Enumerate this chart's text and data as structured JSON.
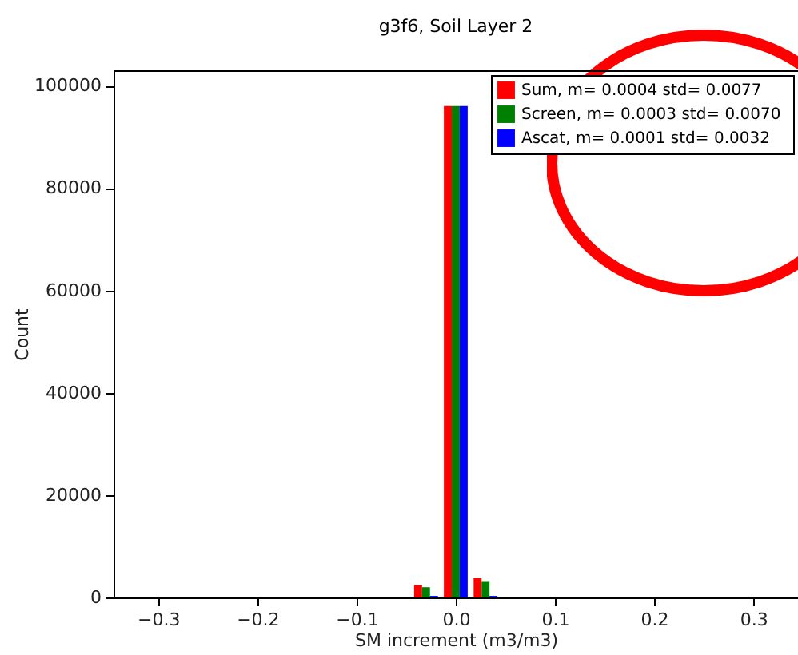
{
  "chart_data": {
    "type": "histogram",
    "title": "g3f6, Soil Layer 2",
    "xlabel": "SM increment (m3/m3)",
    "ylabel": "Count",
    "bins": [
      -0.345,
      -0.315,
      -0.285,
      -0.255,
      -0.225,
      -0.195,
      -0.165,
      -0.135,
      -0.105,
      -0.075,
      -0.045,
      -0.015,
      0.015,
      0.045,
      0.075,
      0.105,
      0.135,
      0.165,
      0.195,
      0.225,
      0.255,
      0.285,
      0.315,
      0.345
    ],
    "series": [
      {
        "name": "Sum, m= 0.0004  std= 0.0077",
        "color": "#ff0000",
        "values": [
          0,
          0,
          0,
          0,
          0,
          0,
          0,
          0,
          0,
          0,
          2500,
          96000,
          3800,
          0,
          0,
          0,
          0,
          0,
          0,
          0,
          0,
          0,
          0
        ]
      },
      {
        "name": "Screen, m= 0.0003  std= 0.0070",
        "color": "#008000",
        "values": [
          0,
          0,
          0,
          0,
          0,
          0,
          0,
          0,
          0,
          0,
          2000,
          96000,
          3200,
          0,
          0,
          0,
          0,
          0,
          0,
          0,
          0,
          0,
          0
        ]
      },
      {
        "name": "Ascat, m= 0.0001  std= 0.0032",
        "color": "#0000ff",
        "values": [
          0,
          0,
          0,
          0,
          0,
          0,
          0,
          0,
          0,
          0,
          300,
          96000,
          300,
          0,
          0,
          0,
          0,
          0,
          0,
          0,
          0,
          0,
          0
        ]
      }
    ],
    "xlim": [
      -0.345,
      0.345
    ],
    "xticks": [
      {
        "value": -0.3,
        "label": "−0.3"
      },
      {
        "value": -0.2,
        "label": "−0.2"
      },
      {
        "value": -0.1,
        "label": "−0.1"
      },
      {
        "value": 0,
        "label": "0.0"
      },
      {
        "value": 0.1,
        "label": "0.1"
      },
      {
        "value": 0.2,
        "label": "0.2"
      },
      {
        "value": 0.3,
        "label": "0.3"
      }
    ],
    "ylim": [
      0,
      103000
    ],
    "yticks": [
      0,
      20000,
      40000,
      60000,
      80000,
      100000
    ],
    "legend": "top right"
  }
}
